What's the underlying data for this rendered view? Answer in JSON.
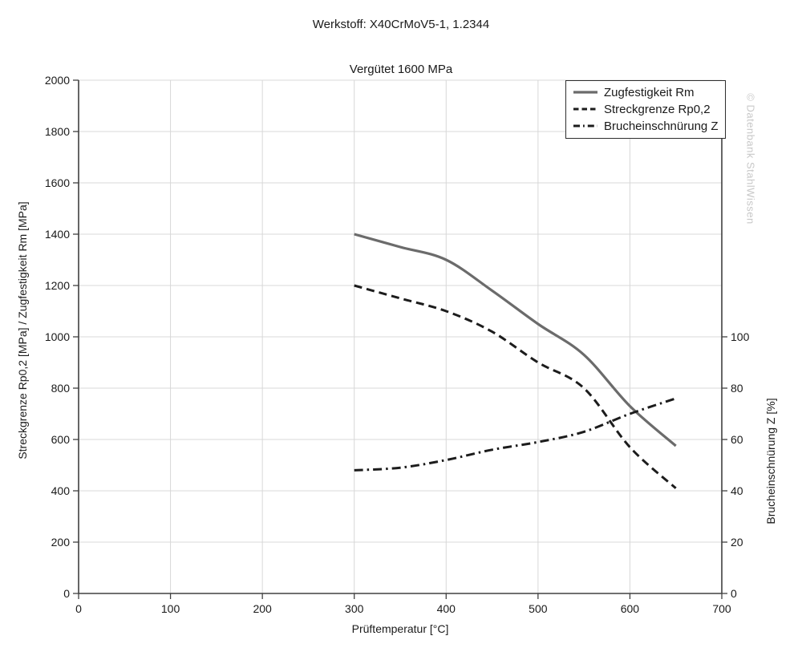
{
  "watermark": "© Datenbank StahlWissen",
  "colors": {
    "background": "#ffffff",
    "text": "#1a1a1a",
    "grid": "#d8d8d8",
    "axis": "#404040",
    "legend_border": "#2e2e2e",
    "watermark": "#c8c8c8"
  },
  "chart_data": {
    "type": "line",
    "title": "Werkstoff: X40CrMoV5-1, 1.2344",
    "subtitle": "Vergütet 1600 MPa",
    "xlabel": "Prüftemperatur [°C]",
    "ylabel_left": "Streckgrenze Rp0,2 [MPa] / Zugfestigkeit Rm [MPa]",
    "ylabel_right": "Brucheinschnürung Z [%]",
    "xlim": [
      0,
      700
    ],
    "ylim_left": [
      0,
      2000
    ],
    "right_axis_pct_to_left_mpa": 10,
    "x_ticks": [
      0,
      100,
      200,
      300,
      400,
      500,
      600,
      700
    ],
    "y_left_ticks": [
      0,
      200,
      400,
      600,
      800,
      1000,
      1200,
      1400,
      1600,
      1800,
      2000
    ],
    "y_right_ticks": [
      0,
      20,
      40,
      60,
      80,
      100
    ],
    "grid": true,
    "legend_position": "top-right",
    "x": [
      300,
      350,
      400,
      450,
      500,
      550,
      600,
      650
    ],
    "series": [
      {
        "name": "Zugfestigkeit Rm",
        "axis": "left",
        "style": "solid",
        "color": "#6b6b6b",
        "values": [
          1400,
          1350,
          1300,
          1180,
          1050,
          930,
          730,
          575
        ]
      },
      {
        "name": "Streckgrenze Rp0,2",
        "axis": "left",
        "style": "dashed",
        "color": "#1c1c1c",
        "values": [
          1200,
          1150,
          1100,
          1020,
          900,
          800,
          570,
          410
        ]
      },
      {
        "name": "Brucheinschnürung Z",
        "axis": "right",
        "style": "dashdot",
        "color": "#1c1c1c",
        "values": [
          48,
          49,
          52,
          56,
          59,
          63,
          70,
          76
        ]
      }
    ]
  }
}
